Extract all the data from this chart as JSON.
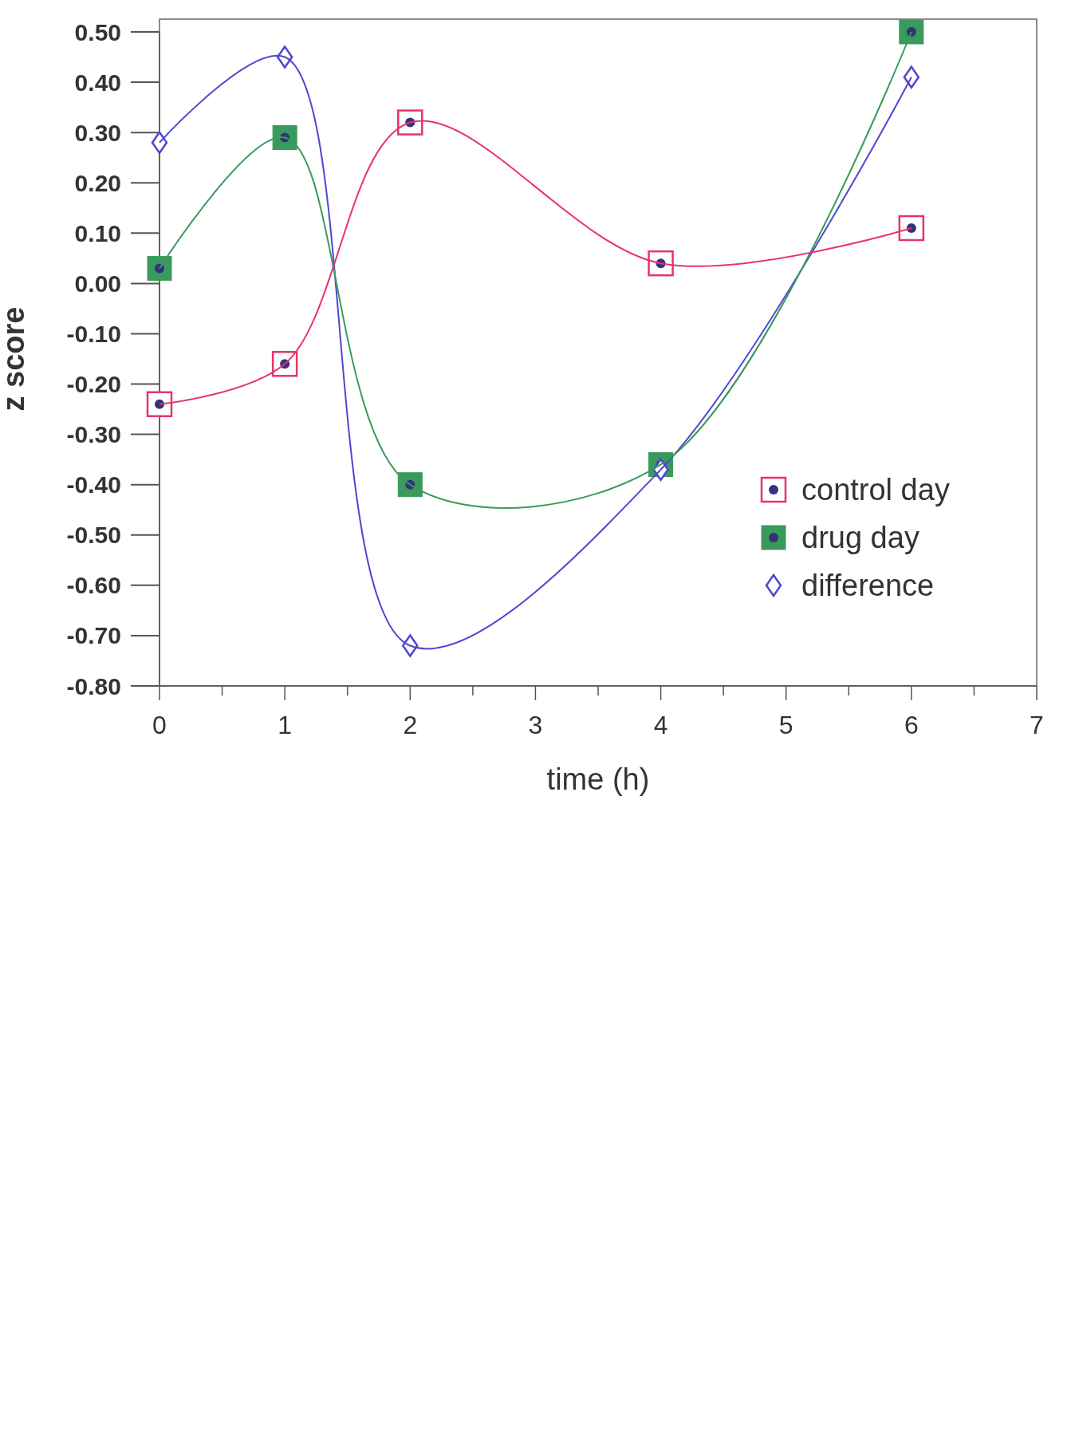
{
  "chart_data": {
    "type": "line",
    "xlabel": "time (h)",
    "ylabel": "z score",
    "x": [
      0,
      1,
      2,
      4,
      6
    ],
    "series": [
      {
        "name": "control day",
        "color": "#e8336e",
        "marker": "square",
        "values": [
          -0.24,
          -0.16,
          0.32,
          0.04,
          0.11
        ]
      },
      {
        "name": "drug day",
        "color": "#3a9a5c",
        "marker": "square",
        "values": [
          0.03,
          0.29,
          -0.4,
          -0.36,
          0.5
        ]
      },
      {
        "name": "difference",
        "color": "#5046d0",
        "marker": "diamond",
        "values": [
          0.28,
          0.45,
          -0.72,
          -0.37,
          0.41
        ]
      }
    ],
    "xlim": [
      0,
      7
    ],
    "xticks": [
      0,
      {
        "value": 0.5,
        "label": null
      },
      1,
      {
        "value": 1.5,
        "label": null
      },
      2,
      {
        "value": 2.5,
        "label": null
      },
      3,
      {
        "value": 3.5,
        "label": null
      },
      4,
      {
        "value": 4.5,
        "label": null
      },
      5,
      {
        "value": 5.5,
        "label": null
      },
      6,
      {
        "value": 6.5,
        "label": null
      },
      7
    ],
    "ylim": [
      -0.8,
      0.5
    ],
    "yticks": [
      {
        "value": 0.5,
        "label": "0.50"
      },
      {
        "value": 0.4,
        "label": "0.40"
      },
      {
        "value": 0.3,
        "label": "0.30"
      },
      {
        "value": 0.2,
        "label": "0.20"
      },
      {
        "value": 0.1,
        "label": "0.10"
      },
      {
        "value": 0,
        "label": "0.00"
      },
      {
        "value": -0.1,
        "label": "-0.10"
      },
      {
        "value": -0.2,
        "label": "-0.20"
      },
      {
        "value": -0.3,
        "label": "-0.30"
      },
      {
        "value": -0.4,
        "label": "-0.40"
      },
      {
        "value": -0.5,
        "label": "-0.50"
      },
      {
        "value": -0.6,
        "label": "-0.60"
      },
      {
        "value": -0.7,
        "label": "-0.70"
      },
      {
        "value": -0.8,
        "label": "-0.80"
      }
    ],
    "grid": false,
    "legend": "bottom right"
  }
}
